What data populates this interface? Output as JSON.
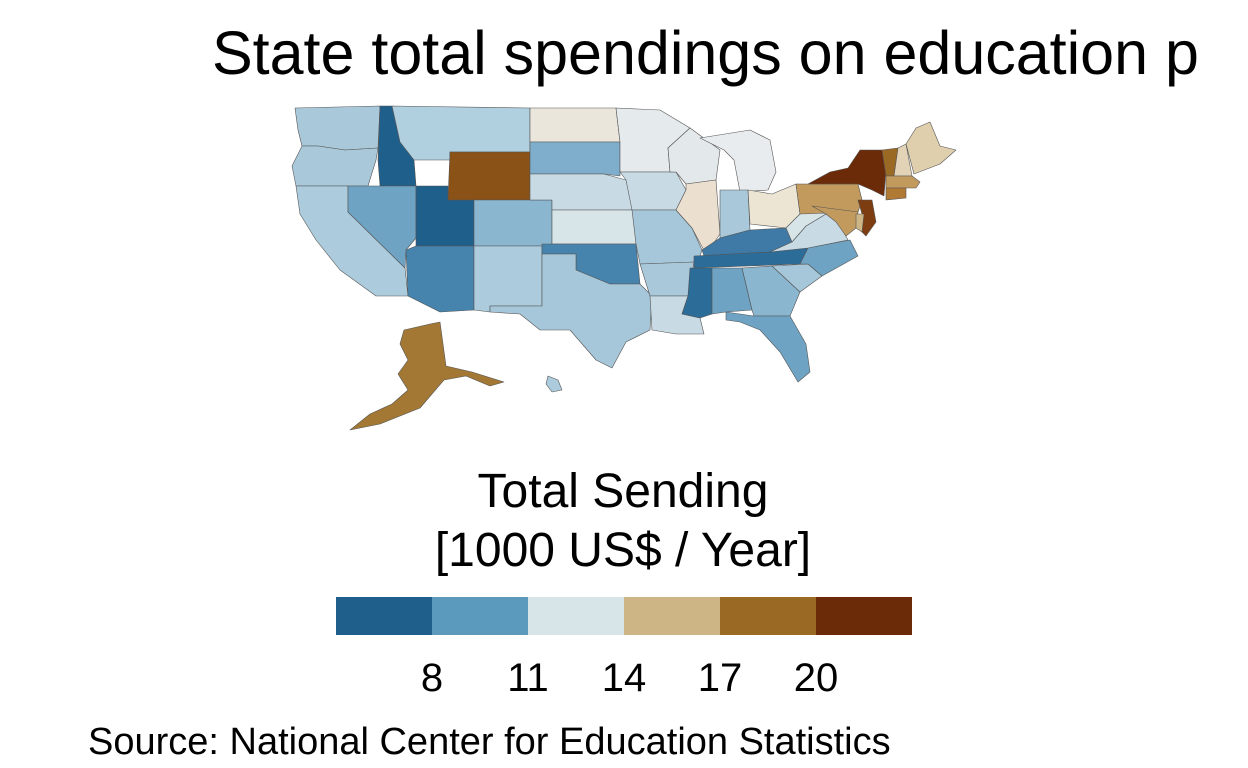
{
  "title": "State total spendings on education p",
  "legend": {
    "title_line1": "Total Sending",
    "title_line2": "[1000 US$ / Year]",
    "breaks": [
      "8",
      "11",
      "14",
      "17",
      "20"
    ],
    "colors": [
      "#1f5f8b",
      "#5b9abd",
      "#d7e5e8",
      "#cdb585",
      "#9a6a25",
      "#6b2a08"
    ]
  },
  "source": "Source: National Center for Education Statistics",
  "chart_data": {
    "type": "choropleth",
    "title": "State total spendings on education p",
    "legend_title": "Total Sending [1000 US$ / Year]",
    "bins": [
      {
        "label": "< 8",
        "color": "#1f5f8b"
      },
      {
        "label": "8 – 11",
        "color": "#5b9abd"
      },
      {
        "label": "11 – 14",
        "color": "#d7e5e8"
      },
      {
        "label": "14 – 17",
        "color": "#cdb585"
      },
      {
        "label": "17 – 20",
        "color": "#9a6a25"
      },
      {
        "label": "> 20",
        "color": "#6b2a08"
      }
    ],
    "states": [
      {
        "state": "Washington",
        "color": "#a9c9db"
      },
      {
        "state": "Oregon",
        "color": "#a9c9db"
      },
      {
        "state": "California",
        "color": "#acccde"
      },
      {
        "state": "Idaho",
        "color": "#1f5f8b"
      },
      {
        "state": "Nevada",
        "color": "#6ea3c4"
      },
      {
        "state": "Utah",
        "color": "#1f5f8b"
      },
      {
        "state": "Arizona",
        "color": "#4683ad"
      },
      {
        "state": "Montana",
        "color": "#b0cfdf"
      },
      {
        "state": "Wyoming",
        "color": "#8a5216"
      },
      {
        "state": "Colorado",
        "color": "#8ab6d0"
      },
      {
        "state": "New Mexico",
        "color": "#acccde"
      },
      {
        "state": "North Dakota",
        "color": "#ebe6dc"
      },
      {
        "state": "South Dakota",
        "color": "#7eaecb"
      },
      {
        "state": "Nebraska",
        "color": "#c8dbe5"
      },
      {
        "state": "Kansas",
        "color": "#d7e5e8"
      },
      {
        "state": "Oklahoma",
        "color": "#4683ad"
      },
      {
        "state": "Texas",
        "color": "#a6c6d9"
      },
      {
        "state": "Minnesota",
        "color": "#e5eaed"
      },
      {
        "state": "Iowa",
        "color": "#c8dbe5"
      },
      {
        "state": "Missouri",
        "color": "#a6c6d9"
      },
      {
        "state": "Arkansas",
        "color": "#a9c9db"
      },
      {
        "state": "Louisiana",
        "color": "#c8dbe5"
      },
      {
        "state": "Wisconsin",
        "color": "#e3e8eb"
      },
      {
        "state": "Illinois",
        "color": "#ebe0d0"
      },
      {
        "state": "Michigan",
        "color": "#e8ecee"
      },
      {
        "state": "Indiana",
        "color": "#a9c9db"
      },
      {
        "state": "Ohio",
        "color": "#ede5d4"
      },
      {
        "state": "Kentucky",
        "color": "#3e7aa5"
      },
      {
        "state": "Tennessee",
        "color": "#2c6c98"
      },
      {
        "state": "Mississippi",
        "color": "#2c6c98"
      },
      {
        "state": "Alabama",
        "color": "#6ea3c4"
      },
      {
        "state": "Georgia",
        "color": "#8ab6d0"
      },
      {
        "state": "Florida",
        "color": "#6ea3c4"
      },
      {
        "state": "South Carolina",
        "color": "#a6c6d9"
      },
      {
        "state": "North Carolina",
        "color": "#6ea3c4"
      },
      {
        "state": "Virginia",
        "color": "#c8dbe5"
      },
      {
        "state": "West Virginia",
        "color": "#d7e5e8"
      },
      {
        "state": "Pennsylvania",
        "color": "#c39a5e"
      },
      {
        "state": "New York",
        "color": "#6b2a08"
      },
      {
        "state": "Vermont",
        "color": "#9a6a25"
      },
      {
        "state": "New Hampshire",
        "color": "#e2d3b6"
      },
      {
        "state": "Maine",
        "color": "#e0cfad"
      },
      {
        "state": "Massachusetts",
        "color": "#c39a5e"
      },
      {
        "state": "Connecticut",
        "color": "#b07a35"
      },
      {
        "state": "New Jersey",
        "color": "#7d3d10"
      },
      {
        "state": "Maryland",
        "color": "#c39a5e"
      },
      {
        "state": "Delaware",
        "color": "#cdb585"
      },
      {
        "state": "Alaska",
        "color": "#a37835"
      },
      {
        "state": "Hawaii",
        "color": "#acccde"
      }
    ]
  }
}
